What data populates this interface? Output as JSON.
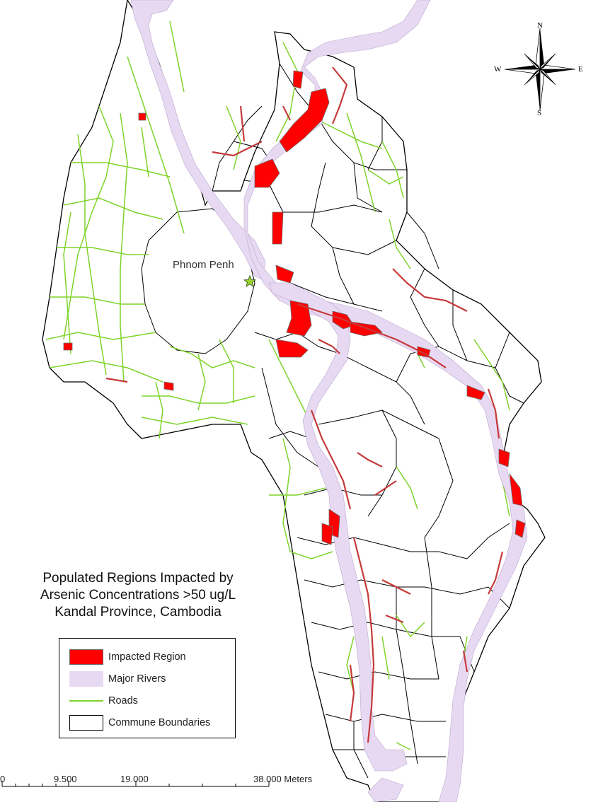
{
  "map": {
    "title_lines": [
      "Populated Regions Impacted by",
      "Arsenic Concentrations >50 ug/L",
      "Kandal Province, Cambodia"
    ],
    "city_label": "Phnom Penh",
    "legend": [
      {
        "key": "impacted",
        "label": "Impacted Region"
      },
      {
        "key": "rivers",
        "label": "Major Rivers"
      },
      {
        "key": "roads",
        "label": "Roads"
      },
      {
        "key": "communes",
        "label": "Commune Boundaries"
      }
    ],
    "scale_bar": {
      "labels": [
        "0",
        "9.500",
        "19.000",
        "38.000 Meters"
      ]
    },
    "compass": {
      "n": "N",
      "s": "S",
      "e": "E",
      "w": "W"
    },
    "colors": {
      "impacted": "#ff0000",
      "rivers": "#e8d9f3",
      "roads": "#7ed32a",
      "boundaries": "#000000",
      "city_marker": "#9bd12c"
    }
  }
}
